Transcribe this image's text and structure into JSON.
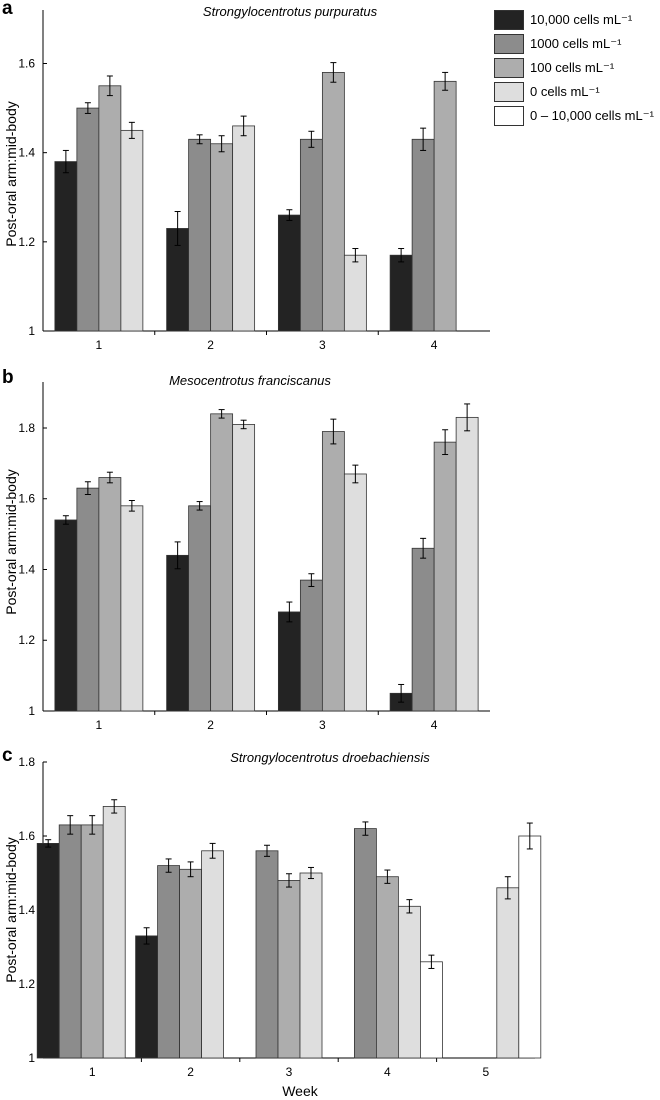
{
  "series_colors": [
    "#232323",
    "#8c8c8c",
    "#adadad",
    "#dedede",
    "#ffffff"
  ],
  "legend": {
    "items": [
      "10,000 cells mL⁻¹",
      "1000 cells mL⁻¹",
      "100 cells mL⁻¹",
      "0 cells mL⁻¹",
      "0 – 10,000 cells mL⁻¹"
    ]
  },
  "chart_data": [
    {
      "type": "bar",
      "panel_label": "a",
      "title": "Strongylocentrotus purpuratus",
      "ylabel": "Post-oral arm:mid-body",
      "xlabel": "",
      "ylim": [
        1,
        1.72
      ],
      "yticks": [
        1,
        1.2,
        1.4,
        1.6
      ],
      "ytick_labels": [
        "1",
        "1.2",
        "1.4",
        "1.6"
      ],
      "categories": [
        "1",
        "2",
        "3",
        "4"
      ],
      "series": [
        {
          "name": "10,000 cells mL⁻¹",
          "values": [
            1.38,
            1.23,
            1.26,
            1.17
          ],
          "errors": [
            0.025,
            0.038,
            0.012,
            0.015
          ]
        },
        {
          "name": "1000 cells mL⁻¹",
          "values": [
            1.5,
            1.43,
            1.43,
            1.43
          ],
          "errors": [
            0.012,
            0.01,
            0.018,
            0.025
          ]
        },
        {
          "name": "100 cells mL⁻¹",
          "values": [
            1.55,
            1.42,
            1.58,
            1.56
          ],
          "errors": [
            0.022,
            0.018,
            0.022,
            0.02
          ]
        },
        {
          "name": "0 cells mL⁻¹",
          "values": [
            1.45,
            1.46,
            1.17,
            null
          ],
          "errors": [
            0.018,
            0.022,
            0.015,
            null
          ]
        }
      ]
    },
    {
      "type": "bar",
      "panel_label": "b",
      "title": "Mesocentrotus franciscanus",
      "ylabel": "Post-oral arm:mid-body",
      "xlabel": "",
      "ylim": [
        1,
        1.93
      ],
      "yticks": [
        1,
        1.2,
        1.4,
        1.6,
        1.8
      ],
      "ytick_labels": [
        "1",
        "1.2",
        "1.4",
        "1.6",
        "1.8"
      ],
      "categories": [
        "1",
        "2",
        "3",
        "4"
      ],
      "series": [
        {
          "name": "10,000 cells mL⁻¹",
          "values": [
            1.54,
            1.44,
            1.28,
            1.05
          ],
          "errors": [
            0.012,
            0.038,
            0.028,
            0.025
          ]
        },
        {
          "name": "1000 cells mL⁻¹",
          "values": [
            1.63,
            1.58,
            1.37,
            1.46
          ],
          "errors": [
            0.018,
            0.012,
            0.018,
            0.028
          ]
        },
        {
          "name": "100 cells mL⁻¹",
          "values": [
            1.66,
            1.84,
            1.79,
            1.76
          ],
          "errors": [
            0.015,
            0.012,
            0.035,
            0.035
          ]
        },
        {
          "name": "0 cells mL⁻¹",
          "values": [
            1.58,
            1.81,
            1.67,
            1.83
          ],
          "errors": [
            0.015,
            0.012,
            0.025,
            0.038
          ]
        }
      ]
    },
    {
      "type": "bar",
      "panel_label": "c",
      "title": "Strongylocentrotus droebachiensis",
      "ylabel": "Post-oral arm:mid-body",
      "xlabel": "Week",
      "ylim": [
        1,
        1.8
      ],
      "yticks": [
        1,
        1.2,
        1.4,
        1.6,
        1.8
      ],
      "ytick_labels": [
        "1",
        "1.2",
        "1.4",
        "1.6",
        "1.8"
      ],
      "categories": [
        "1",
        "2",
        "3",
        "4",
        "5"
      ],
      "series": [
        {
          "name": "10,000 cells mL⁻¹",
          "values": [
            1.58,
            1.33,
            null,
            null,
            null
          ],
          "errors": [
            0.01,
            0.022,
            null,
            null,
            null
          ]
        },
        {
          "name": "1000 cells mL⁻¹",
          "values": [
            1.63,
            1.52,
            1.56,
            1.62,
            null
          ],
          "errors": [
            0.025,
            0.018,
            0.015,
            0.018,
            null
          ]
        },
        {
          "name": "100 cells mL⁻¹",
          "values": [
            1.63,
            1.51,
            1.48,
            1.49,
            null
          ],
          "errors": [
            0.025,
            0.02,
            0.018,
            0.018,
            null
          ]
        },
        {
          "name": "0 cells mL⁻¹",
          "values": [
            1.68,
            1.56,
            1.5,
            1.41,
            1.46
          ],
          "errors": [
            0.018,
            0.02,
            0.015,
            0.018,
            0.03
          ]
        },
        {
          "name": "0 – 10,000 cells mL⁻¹",
          "values": [
            null,
            null,
            null,
            1.26,
            1.6
          ],
          "errors": [
            null,
            null,
            null,
            0.018,
            0.035
          ]
        }
      ]
    }
  ]
}
